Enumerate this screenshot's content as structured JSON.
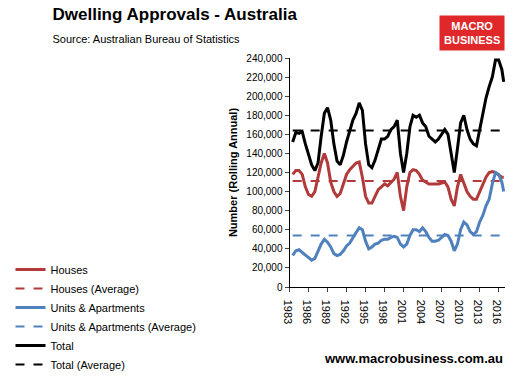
{
  "chart_data": {
    "type": "line",
    "title": "Dwelling Approvals - Australia",
    "subtitle": "Source: Australian Bureau of Statistics",
    "brand": [
      "MACRO",
      "BUSINESS"
    ],
    "footer": "www.macrobusiness.com.au",
    "y_label": "Number (Rolling Annual)",
    "x": [
      1983.5,
      1984,
      1984.5,
      1985,
      1985.5,
      1986,
      1986.5,
      1987,
      1987.5,
      1988,
      1988.5,
      1989,
      1989.5,
      1990,
      1990.5,
      1991,
      1991.5,
      1992,
      1992.5,
      1993,
      1993.5,
      1994,
      1994.5,
      1995,
      1995.5,
      1996,
      1996.5,
      1997,
      1997.5,
      1998,
      1998.5,
      1999,
      1999.5,
      2000,
      2000.5,
      2001,
      2001.5,
      2002,
      2002.5,
      2003,
      2003.5,
      2004,
      2004.5,
      2005,
      2005.5,
      2006,
      2006.5,
      2007,
      2007.5,
      2008,
      2008.5,
      2009,
      2009.5,
      2010,
      2010.5,
      2011,
      2011.5,
      2012,
      2012.5,
      2013,
      2013.5,
      2014,
      2014.5,
      2015,
      2015.5,
      2016,
      2016.5,
      2016.8
    ],
    "series": [
      {
        "name": "Houses",
        "color": "#b23a3a",
        "line_style": "solid",
        "values": [
          118000,
          122000,
          122000,
          118000,
          105000,
          97000,
          95000,
          100000,
          115000,
          130000,
          140000,
          130000,
          110000,
          100000,
          95000,
          98000,
          108000,
          118000,
          123000,
          127000,
          130000,
          131000,
          115000,
          95000,
          88000,
          88000,
          95000,
          102000,
          105000,
          108000,
          106000,
          110000,
          113000,
          120000,
          95000,
          80000,
          105000,
          120000,
          123000,
          122000,
          118000,
          112000,
          110000,
          108000,
          108000,
          108000,
          108000,
          109000,
          110000,
          105000,
          92000,
          85000,
          105000,
          118000,
          110000,
          100000,
          95000,
          92000,
          92000,
          100000,
          108000,
          115000,
          120000,
          121000,
          120000,
          117000,
          115000,
          115000
        ]
      },
      {
        "name": "Houses (Average)",
        "color": "#b23a3a",
        "line_style": "dashed",
        "values": [
          111000,
          111000,
          111000,
          111000,
          111000,
          111000,
          111000,
          111000,
          111000,
          111000,
          111000,
          111000,
          111000,
          111000,
          111000,
          111000,
          111000,
          111000,
          111000,
          111000,
          111000,
          111000,
          111000,
          111000,
          111000,
          111000,
          111000,
          111000,
          111000,
          111000,
          111000,
          111000,
          111000,
          111000,
          111000,
          111000,
          111000,
          111000,
          111000,
          111000,
          111000,
          111000,
          111000,
          111000,
          111000,
          111000,
          111000,
          111000,
          111000,
          111000,
          111000,
          111000,
          111000,
          111000,
          111000,
          111000,
          111000,
          111000,
          111000,
          111000,
          111000,
          111000,
          111000,
          111000,
          111000,
          111000,
          111000,
          111000
        ]
      },
      {
        "name": "Units & Apartments",
        "color": "#4f81bd",
        "line_style": "solid",
        "values": [
          33000,
          38000,
          39000,
          36000,
          33000,
          30000,
          28000,
          30000,
          38000,
          45000,
          50000,
          47000,
          42000,
          35000,
          33000,
          34000,
          38000,
          43000,
          46000,
          52000,
          57000,
          62000,
          60000,
          48000,
          40000,
          42000,
          45000,
          46000,
          49000,
          50000,
          50000,
          52000,
          53000,
          52000,
          45000,
          42000,
          45000,
          54000,
          60000,
          60000,
          58000,
          62000,
          58000,
          52000,
          48000,
          48000,
          49000,
          52000,
          55000,
          54000,
          48000,
          38000,
          45000,
          60000,
          68000,
          65000,
          58000,
          55000,
          58000,
          68000,
          75000,
          85000,
          92000,
          108000,
          120000,
          118000,
          110000,
          100000
        ]
      },
      {
        "name": "Units & Apartments (Average)",
        "color": "#4f81bd",
        "line_style": "dashed",
        "values": [
          54000,
          54000,
          54000,
          54000,
          54000,
          54000,
          54000,
          54000,
          54000,
          54000,
          54000,
          54000,
          54000,
          54000,
          54000,
          54000,
          54000,
          54000,
          54000,
          54000,
          54000,
          54000,
          54000,
          54000,
          54000,
          54000,
          54000,
          54000,
          54000,
          54000,
          54000,
          54000,
          54000,
          54000,
          54000,
          54000,
          54000,
          54000,
          54000,
          54000,
          54000,
          54000,
          54000,
          54000,
          54000,
          54000,
          54000,
          54000,
          54000,
          54000,
          54000,
          54000,
          54000,
          54000,
          54000,
          54000,
          54000,
          54000,
          54000,
          54000,
          54000,
          54000,
          54000,
          54000,
          54000,
          54000,
          54000,
          54000
        ]
      },
      {
        "name": "Total",
        "color": "#000000",
        "line_style": "solid",
        "values": [
          152000,
          162000,
          161000,
          163000,
          150000,
          140000,
          128000,
          122000,
          130000,
          158000,
          182000,
          188000,
          175000,
          150000,
          132000,
          128000,
          138000,
          152000,
          165000,
          175000,
          182000,
          193000,
          185000,
          150000,
          128000,
          125000,
          133000,
          145000,
          155000,
          155000,
          158000,
          165000,
          168000,
          175000,
          140000,
          120000,
          140000,
          168000,
          180000,
          178000,
          180000,
          172000,
          168000,
          158000,
          155000,
          152000,
          155000,
          160000,
          165000,
          160000,
          140000,
          120000,
          145000,
          172000,
          180000,
          165000,
          155000,
          150000,
          148000,
          165000,
          178000,
          198000,
          210000,
          220000,
          238000,
          238000,
          228000,
          215000
        ]
      },
      {
        "name": "Total (Average)",
        "color": "#000000",
        "line_style": "dashed",
        "values": [
          164000,
          164000,
          164000,
          164000,
          164000,
          164000,
          164000,
          164000,
          164000,
          164000,
          164000,
          164000,
          164000,
          164000,
          164000,
          164000,
          164000,
          164000,
          164000,
          164000,
          164000,
          164000,
          164000,
          164000,
          164000,
          164000,
          164000,
          164000,
          164000,
          164000,
          164000,
          164000,
          164000,
          164000,
          164000,
          164000,
          164000,
          164000,
          164000,
          164000,
          164000,
          164000,
          164000,
          164000,
          164000,
          164000,
          164000,
          164000,
          164000,
          164000,
          164000,
          164000,
          164000,
          164000,
          164000,
          164000,
          164000,
          164000,
          164000,
          164000,
          164000,
          164000,
          164000,
          164000,
          164000,
          164000,
          164000,
          164000
        ]
      }
    ],
    "xlim": [
      1983,
      2017
    ],
    "xticks": [
      1983,
      1986,
      1989,
      1992,
      1995,
      1998,
      2001,
      2004,
      2007,
      2010,
      2013,
      2016
    ],
    "ylim": [
      0,
      240000
    ],
    "yticks": [
      0,
      {
        "value": 20000,
        "label": "20,000"
      },
      {
        "value": 40000,
        "label": "40,000"
      },
      {
        "value": 60000,
        "label": "60,000"
      },
      {
        "value": 80000,
        "label": "80,000"
      },
      {
        "value": 100000,
        "label": "100,000"
      },
      {
        "value": 120000,
        "label": "120,000"
      },
      {
        "value": 140000,
        "label": "140,000"
      },
      {
        "value": 160000,
        "label": "160,000"
      },
      {
        "value": 180000,
        "label": "180,000"
      },
      {
        "value": 200000,
        "label": "200,000"
      },
      {
        "value": 220000,
        "label": "220,000"
      },
      {
        "value": 240000,
        "label": "240,000"
      }
    ],
    "grid": false,
    "legend": "bottom"
  }
}
